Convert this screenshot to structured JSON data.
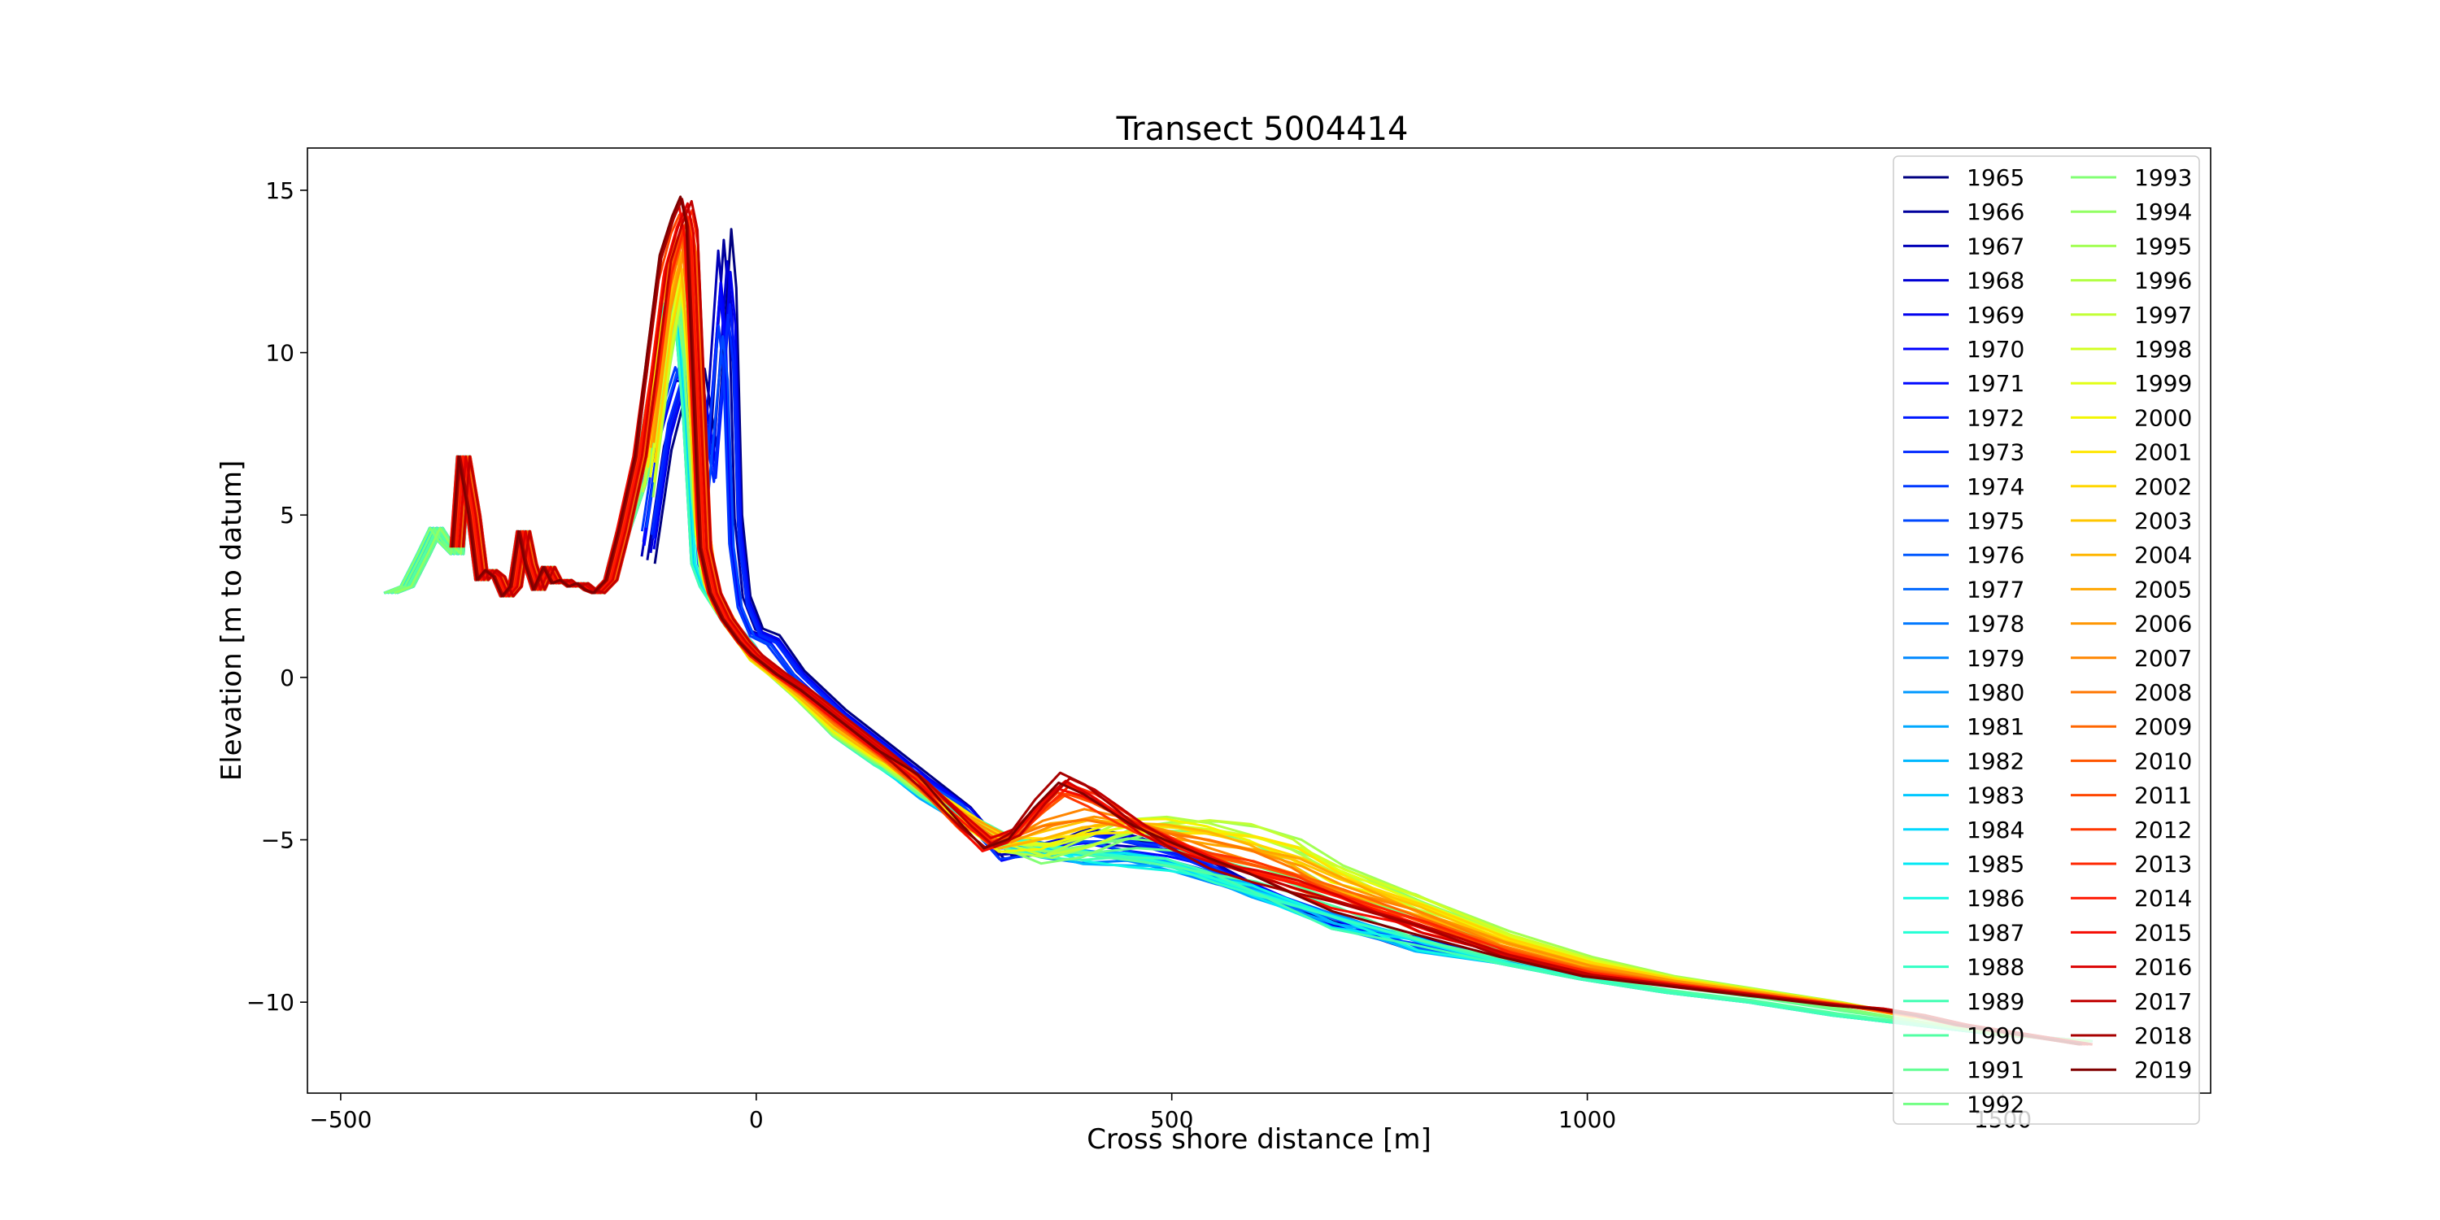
{
  "chart_data": {
    "type": "line",
    "title": "Transect 5004414",
    "xlabel": "Cross shore distance [m]",
    "ylabel": "Elevation [m to datum]",
    "xlim": [
      -540,
      1750
    ],
    "ylim": [
      -12.8,
      16.3
    ],
    "x_ticks": [
      -500,
      0,
      500,
      1000,
      1500
    ],
    "x_tick_labels": [
      "−500",
      "0",
      "500",
      "1000",
      "1500"
    ],
    "y_ticks": [
      -10,
      -5,
      0,
      5,
      10,
      15
    ],
    "y_tick_labels": [
      "−10",
      "−5",
      "0",
      "5",
      "10",
      "15"
    ],
    "grid": false,
    "legend": {
      "placement": "top-right",
      "columns": 2
    },
    "colormap": "jet",
    "years": [
      "1965",
      "1966",
      "1967",
      "1968",
      "1969",
      "1970",
      "1971",
      "1972",
      "1973",
      "1974",
      "1975",
      "1976",
      "1977",
      "1978",
      "1979",
      "1980",
      "1981",
      "1982",
      "1983",
      "1984",
      "1985",
      "1986",
      "1987",
      "1988",
      "1989",
      "1990",
      "1991",
      "1992",
      "1993",
      "1994",
      "1995",
      "1996",
      "1997",
      "1998",
      "1999",
      "2000",
      "2001",
      "2002",
      "2003",
      "2004",
      "2005",
      "2006",
      "2007",
      "2008",
      "2009",
      "2010",
      "2011",
      "2012",
      "2013",
      "2014",
      "2015",
      "2016",
      "2017",
      "2018",
      "2019"
    ],
    "colors": [
      "#000080",
      "#00009d",
      "#0000b7",
      "#0000d4",
      "#0000ee",
      "#0000ff",
      "#0008ff",
      "#0018ff",
      "#0028ff",
      "#0038ff",
      "#0048ff",
      "#0058ff",
      "#0068ff",
      "#0078ff",
      "#0088ff",
      "#0098ff",
      "#00a8ff",
      "#00b8ff",
      "#00c8ff",
      "#00d8ff",
      "#02e8f4",
      "#12f8e4",
      "#22ffd4",
      "#32ffc4",
      "#42ffb4",
      "#52ffa4",
      "#62ff94",
      "#72ff84",
      "#82ff74",
      "#92ff64",
      "#a2ff54",
      "#b2ff44",
      "#c2ff34",
      "#d2ff24",
      "#e2ff14",
      "#f2f602",
      "#ffe600",
      "#ffd600",
      "#ffc600",
      "#ffb600",
      "#ffa600",
      "#ff9600",
      "#ff8600",
      "#ff7600",
      "#ff6600",
      "#ff5600",
      "#ff4600",
      "#ff3600",
      "#ff2600",
      "#ff1600",
      "#f50a00",
      "#db0000",
      "#c10000",
      "#a70000",
      "#800000"
    ],
    "profile_templates": {
      "early": {
        "x": [
          -130,
          -110,
          -90,
          -70,
          -55,
          -45,
          -38,
          -32,
          -25,
          -15,
          0,
          20,
          50,
          100,
          150,
          200,
          250,
          300,
          350,
          400,
          450,
          500,
          550,
          600,
          700,
          800,
          900,
          960
        ],
        "y": [
          3.5,
          7,
          9,
          9.5,
          7,
          11,
          13.8,
          12,
          5,
          2.5,
          1.5,
          1.3,
          0.2,
          -1,
          -2,
          -3,
          -4,
          -5.5,
          -5.2,
          -4.8,
          -5,
          -5.3,
          -5.8,
          -6.5,
          -7.5,
          -8.2,
          -8.7,
          -9.0
        ]
      },
      "mid": {
        "x": [
          -440,
          -420,
          -400,
          -385,
          -375,
          -360,
          -352,
          -340,
          -330,
          -320,
          -310,
          -300,
          -290,
          -280,
          -272,
          -262,
          -250,
          -240,
          -230,
          -220,
          -210,
          -200,
          -190,
          -175,
          -160,
          -140,
          -120,
          -105,
          -90,
          -80,
          -70,
          -60,
          -45,
          -30,
          -10,
          0,
          20,
          50,
          100,
          150,
          200,
          250,
          300,
          350,
          400,
          450,
          500,
          550,
          600,
          700,
          800,
          900,
          1000,
          1100,
          1200,
          1300,
          1400,
          1500,
          1600
        ],
        "y": [
          2.6,
          2.8,
          3.8,
          4.6,
          4.2,
          3.8,
          6.8,
          5.0,
          3.0,
          3.3,
          3.1,
          2.5,
          2.8,
          4.5,
          3.5,
          2.7,
          3.4,
          2.9,
          3.0,
          2.8,
          2.9,
          2.7,
          2.6,
          3.0,
          4.5,
          6.0,
          9.0,
          11.5,
          11.2,
          8.0,
          3.5,
          2.8,
          2.2,
          1.6,
          1.0,
          0.6,
          0.2,
          -0.5,
          -1.8,
          -2.7,
          -3.6,
          -4.3,
          -5.0,
          -5.3,
          -5.5,
          -5.6,
          -5.8,
          -6.2,
          -6.6,
          -7.5,
          -8.2,
          -8.8,
          -9.3,
          -9.7,
          -10.0,
          -10.4,
          -10.7,
          -11.0,
          -11.2
        ]
      },
      "bar": {
        "x": [
          -130,
          -110,
          -95,
          -85,
          -75,
          -65,
          -55,
          -45,
          -30,
          -10,
          0,
          30,
          60,
          100,
          150,
          200,
          250,
          300,
          350,
          400,
          450,
          500,
          550,
          600,
          650,
          700,
          800,
          900,
          1000,
          1100,
          1200,
          1300,
          1400
        ],
        "y": [
          5.5,
          9.5,
          11.8,
          12.3,
          9.0,
          4.0,
          2.8,
          2.2,
          1.6,
          0.9,
          0.5,
          -0.1,
          -0.8,
          -1.8,
          -2.6,
          -3.4,
          -4.2,
          -5.2,
          -5.6,
          -5.2,
          -4.6,
          -4.4,
          -4.4,
          -4.6,
          -5.0,
          -5.8,
          -6.8,
          -7.8,
          -8.6,
          -9.2,
          -9.6,
          -10.0,
          -10.5
        ]
      },
      "late": {
        "x": [
          -360,
          -352,
          -340,
          -330,
          -320,
          -310,
          -300,
          -290,
          -280,
          -272,
          -262,
          -250,
          -240,
          -230,
          -220,
          -210,
          -200,
          -190,
          -175,
          -160,
          -140,
          -125,
          -110,
          -95,
          -85,
          -78,
          -70,
          -62,
          -50,
          -35,
          -15,
          0,
          30,
          60,
          100,
          150,
          200,
          250,
          280,
          310,
          340,
          370,
          400,
          430,
          460,
          500,
          550,
          600,
          650,
          700,
          800,
          900,
          1000,
          1100,
          1200,
          1300,
          1350,
          1400,
          1450,
          1500,
          1550,
          1600
        ],
        "y": [
          4.0,
          6.8,
          5.0,
          3.0,
          3.3,
          3.1,
          2.5,
          2.8,
          4.5,
          3.5,
          2.7,
          3.4,
          2.9,
          3.0,
          2.8,
          2.9,
          2.7,
          2.6,
          3.0,
          4.5,
          6.8,
          10.0,
          13.0,
          14.2,
          14.8,
          14.0,
          9.0,
          4.0,
          2.6,
          1.8,
          1.1,
          0.7,
          0.1,
          -0.4,
          -1.2,
          -2.2,
          -3.2,
          -4.5,
          -5.2,
          -4.8,
          -3.8,
          -3.0,
          -3.4,
          -4.0,
          -4.6,
          -5.2,
          -5.8,
          -6.2,
          -6.6,
          -7.0,
          -7.8,
          -8.6,
          -9.2,
          -9.5,
          -9.8,
          -10.1,
          -10.2,
          -10.4,
          -10.7,
          -10.9,
          -11.1,
          -11.3
        ]
      }
    }
  }
}
